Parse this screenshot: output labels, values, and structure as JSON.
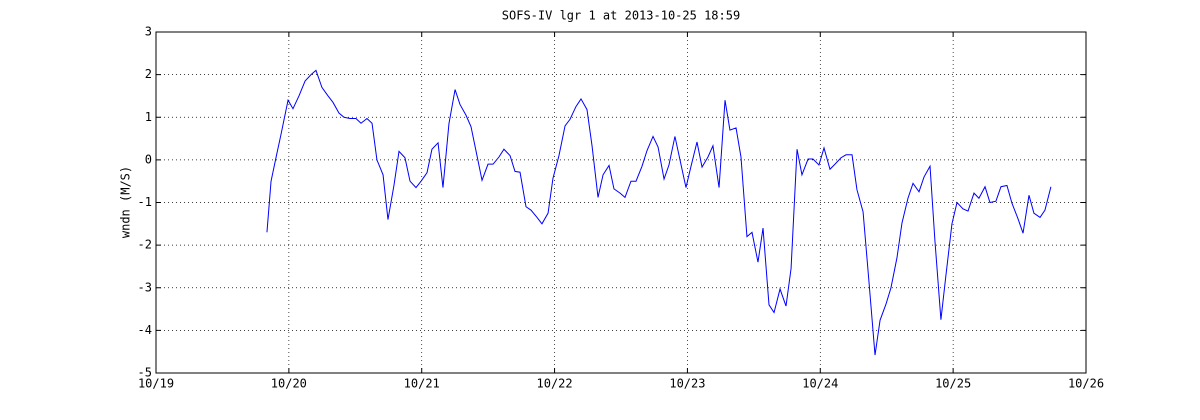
{
  "chart_data": {
    "type": "line",
    "title": "SOFS-IV lgr 1 at 2013-10-25 18:59",
    "y_label": "wndn (M/S)",
    "color": "#0000ff",
    "grid": true,
    "xlim": [
      19,
      26
    ],
    "xticks": [
      {
        "value": 19,
        "label": "10/19"
      },
      {
        "value": 20,
        "label": "10/20"
      },
      {
        "value": 21,
        "label": "10/21"
      },
      {
        "value": 22,
        "label": "10/22"
      },
      {
        "value": 23,
        "label": "10/23"
      },
      {
        "value": 24,
        "label": "10/24"
      },
      {
        "value": 25,
        "label": "10/25"
      },
      {
        "value": 26,
        "label": "10/26"
      }
    ],
    "ylim": [
      -5,
      3
    ],
    "yticks": [
      -5,
      -4,
      -3,
      -2,
      -1,
      0,
      1,
      2,
      3
    ],
    "x": [
      19.835,
      19.866,
      19.903,
      19.941,
      19.994,
      20.031,
      20.076,
      20.122,
      20.167,
      20.204,
      20.249,
      20.295,
      20.332,
      20.377,
      20.415,
      20.46,
      20.505,
      20.543,
      20.588,
      20.626,
      20.663,
      20.709,
      20.746,
      20.791,
      20.829,
      20.874,
      20.912,
      20.957,
      20.995,
      21.04,
      21.077,
      21.123,
      21.16,
      21.205,
      21.251,
      21.288,
      21.333,
      21.371,
      21.416,
      21.454,
      21.499,
      21.537,
      21.582,
      21.619,
      21.665,
      21.702,
      21.74,
      21.785,
      21.823,
      21.868,
      21.905,
      21.951,
      21.988,
      22.033,
      22.079,
      22.116,
      22.161,
      22.199,
      22.244,
      22.282,
      22.327,
      22.365,
      22.41,
      22.447,
      22.493,
      22.53,
      22.575,
      22.613,
      22.658,
      22.696,
      22.741,
      22.779,
      22.824,
      22.861,
      22.906,
      22.944,
      22.989,
      23.027,
      23.072,
      23.11,
      23.155,
      23.192,
      23.238,
      23.283,
      23.32,
      23.366,
      23.403,
      23.448,
      23.486,
      23.531,
      23.569,
      23.614,
      23.652,
      23.697,
      23.742,
      23.78,
      23.825,
      23.862,
      23.908,
      23.945,
      23.99,
      24.028,
      24.073,
      24.111,
      24.156,
      24.194,
      24.239,
      24.276,
      24.322,
      24.367,
      24.412,
      24.45,
      24.495,
      24.532,
      24.577,
      24.615,
      24.66,
      24.698,
      24.743,
      24.781,
      24.826,
      24.863,
      24.908,
      24.946,
      24.991,
      25.029,
      25.074,
      25.112,
      25.157,
      25.194,
      25.24,
      25.277,
      25.322,
      25.36,
      25.405,
      25.443,
      25.488,
      25.526,
      25.571,
      25.608,
      25.654,
      25.691,
      25.736
    ],
    "values": [
      -1.7,
      -0.5,
      0.05,
      0.6,
      1.4,
      1.2,
      1.5,
      1.85,
      2.0,
      2.1,
      1.7,
      1.5,
      1.35,
      1.1,
      1.0,
      0.97,
      0.97,
      0.86,
      0.97,
      0.86,
      0.0,
      -0.35,
      -1.4,
      -0.6,
      0.2,
      0.05,
      -0.5,
      -0.65,
      -0.5,
      -0.3,
      0.25,
      0.4,
      -0.65,
      0.85,
      1.65,
      1.3,
      1.05,
      0.78,
      0.1,
      -0.48,
      -0.1,
      -0.1,
      0.07,
      0.25,
      0.1,
      -0.27,
      -0.29,
      -1.1,
      -1.18,
      -1.35,
      -1.5,
      -1.25,
      -0.43,
      0.1,
      0.8,
      0.95,
      1.25,
      1.43,
      1.18,
      0.33,
      -0.88,
      -0.35,
      -0.13,
      -0.68,
      -0.78,
      -0.88,
      -0.5,
      -0.5,
      -0.15,
      0.22,
      0.55,
      0.3,
      -0.45,
      -0.12,
      0.55,
      0.0,
      -0.65,
      -0.15,
      0.42,
      -0.17,
      0.07,
      0.33,
      -0.65,
      1.4,
      0.7,
      0.75,
      0.07,
      -1.8,
      -1.7,
      -2.4,
      -1.6,
      -3.4,
      -3.58,
      -3.03,
      -3.43,
      -2.55,
      0.25,
      -0.35,
      0.02,
      0.02,
      -0.12,
      0.28,
      -0.22,
      -0.1,
      0.05,
      0.12,
      0.12,
      -0.7,
      -1.22,
      -2.88,
      -4.58,
      -3.76,
      -3.38,
      -3.0,
      -2.3,
      -1.48,
      -0.9,
      -0.55,
      -0.75,
      -0.4,
      -0.15,
      -1.9,
      -3.75,
      -2.7,
      -1.5,
      -1.0,
      -1.15,
      -1.2,
      -0.78,
      -0.9,
      -0.63,
      -1.0,
      -0.97,
      -0.63,
      -0.6,
      -1.02,
      -1.38,
      -1.72,
      -0.83,
      -1.25,
      -1.35,
      -1.18,
      -0.63
    ]
  }
}
